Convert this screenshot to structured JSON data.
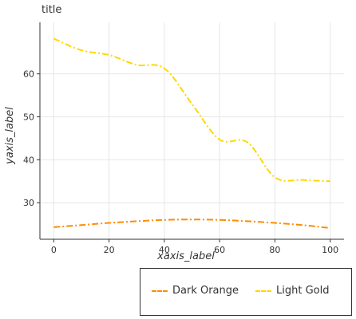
{
  "chart_data": {
    "type": "line",
    "title": "title",
    "xlabel": "xaxis_label",
    "ylabel": "yaxis_label",
    "xlim": [
      -5,
      105
    ],
    "ylim": [
      21.5,
      72
    ],
    "x_ticks": [
      0,
      20,
      40,
      60,
      80,
      100
    ],
    "y_ticks": [
      30,
      40,
      50,
      60
    ],
    "grid": true,
    "legend_position": "bottom-right",
    "series": [
      {
        "name": "Dark Orange",
        "color": "#ff8c00",
        "x": [
          0,
          10,
          20,
          30,
          40,
          50,
          60,
          70,
          80,
          90,
          100
        ],
        "y": [
          24.3,
          24.8,
          25.3,
          25.7,
          26.0,
          26.1,
          26.0,
          25.7,
          25.3,
          24.8,
          24.1
        ]
      },
      {
        "name": "Light Gold",
        "color": "#ffd700",
        "x": [
          0,
          10,
          20,
          30,
          40,
          50,
          60,
          70,
          80,
          90,
          100
        ],
        "y": [
          68.2,
          65.5,
          64.4,
          62.1,
          61.3,
          53.0,
          44.7,
          44.1,
          35.9,
          35.3,
          35.0
        ]
      }
    ]
  }
}
